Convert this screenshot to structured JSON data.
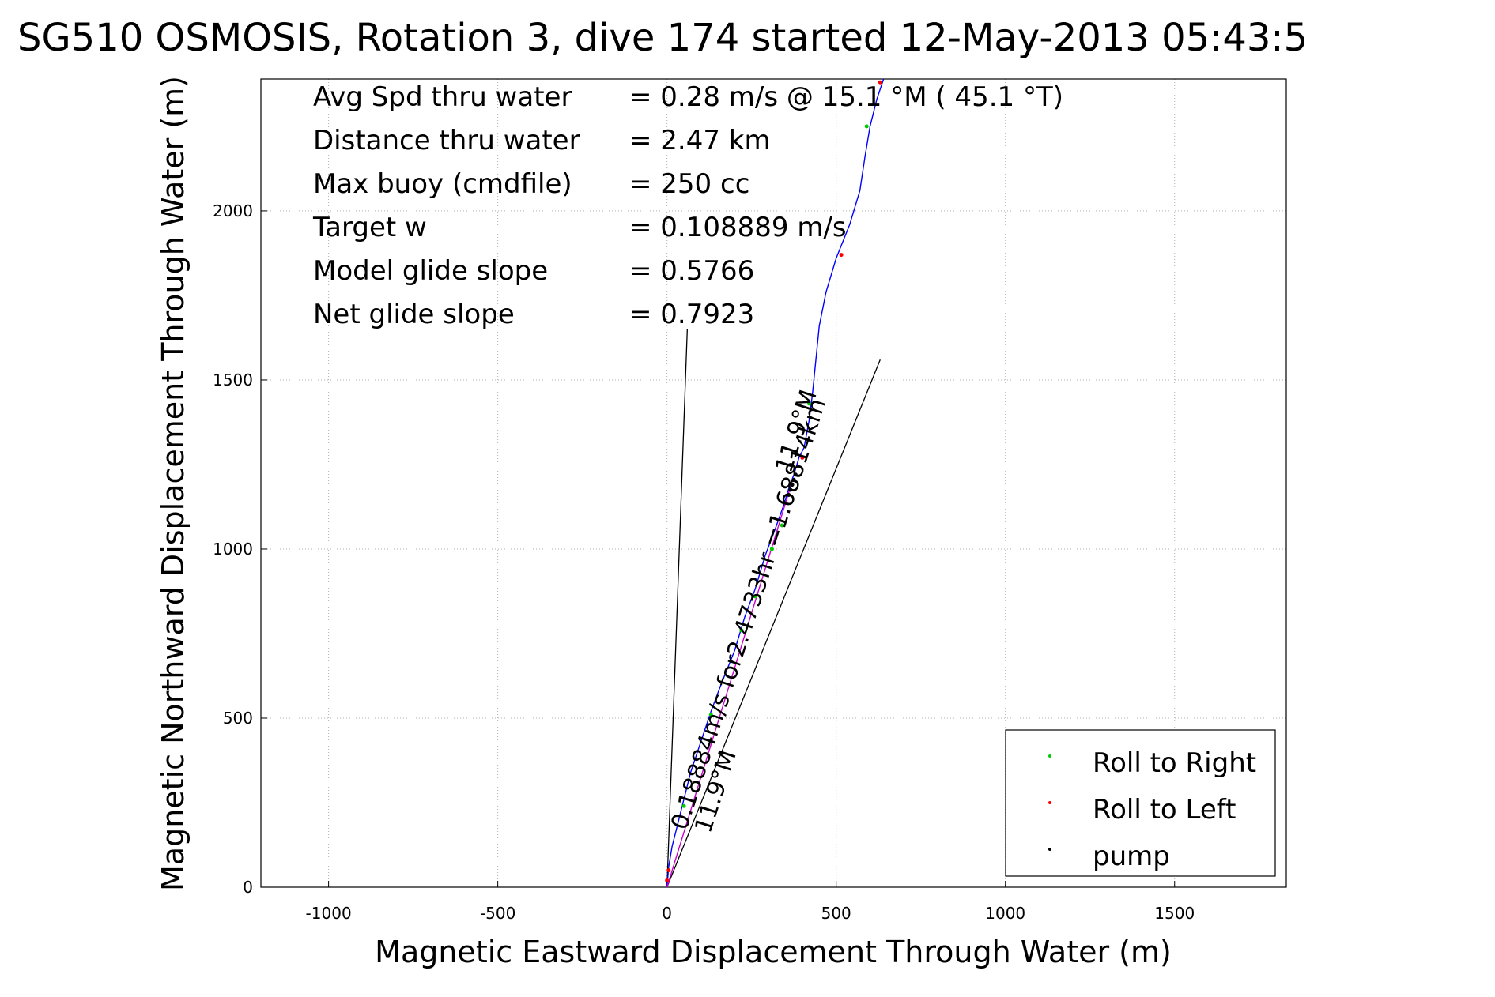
{
  "chart_data": {
    "type": "line",
    "title": "SG510 OSMOSIS, Rotation 3, dive 174 started 12-May-2013 05:43:5",
    "xlabel": "Magnetic Eastward Displacement Through Water (m)",
    "ylabel": "Magnetic Northward Displacement Through Water (m)",
    "xlim": [
      -1200,
      1830
    ],
    "ylim": [
      0,
      2390
    ],
    "xticks": [
      -1000,
      -500,
      0,
      500,
      1000,
      1500
    ],
    "yticks": [
      0,
      500,
      1000,
      1500,
      2000
    ],
    "xtick_labels": [
      "-1000",
      "-500",
      "0",
      "500",
      "1000",
      "1500"
    ],
    "ytick_labels": [
      "0",
      "500",
      "1000",
      "1500",
      "2000"
    ],
    "grid": true,
    "legend_position": "bottom-right",
    "stats": [
      {
        "label": "Avg Spd thru water",
        "value": "=  0.28 m/s @  15.1 °M ( 45.1 °T)"
      },
      {
        "label": "Distance thru water",
        "value": "=  2.47 km"
      },
      {
        "label": "Max buoy (cmdfile)",
        "value": "= 250 cc"
      },
      {
        "label": "Target w",
        "value": "= 0.108889 m/s"
      },
      {
        "label": "Model glide slope",
        "value": "= 0.5766"
      },
      {
        "label": "Net glide slope",
        "value": "= 0.7923"
      }
    ],
    "track_labels": [
      "0.18884m/s for2.4733hr =1.68814km",
      "11.9°M",
      "11.9°M"
    ],
    "series": [
      {
        "name": "track",
        "color": "#0000ff",
        "x": [
          0,
          5,
          15,
          30,
          50,
          70,
          100,
          130,
          160,
          200,
          230,
          260,
          290,
          320,
          345,
          360,
          375,
          390,
          405,
          420,
          430,
          440,
          450,
          470,
          500,
          540,
          570,
          585,
          600,
          620,
          640
        ],
        "y": [
          0,
          60,
          120,
          180,
          260,
          340,
          430,
          520,
          600,
          700,
          800,
          880,
          980,
          1060,
          1130,
          1180,
          1220,
          1270,
          1300,
          1380,
          1460,
          1560,
          1660,
          1760,
          1860,
          1960,
          2060,
          2160,
          2250,
          2330,
          2390
        ]
      },
      {
        "name": "target-track",
        "color": "#cc00cc",
        "x": [
          0,
          370
        ],
        "y": [
          0,
          1200
        ]
      }
    ],
    "guide_lines": [
      {
        "name": "heading-line-1",
        "color": "#000000",
        "x": [
          0,
          60
        ],
        "y": [
          0,
          1650
        ]
      },
      {
        "name": "heading-line-2",
        "color": "#000000",
        "x": [
          0,
          630
        ],
        "y": [
          0,
          1560
        ]
      }
    ],
    "markers": [
      {
        "name": "Roll to Right",
        "color": "#00cc00",
        "x": [
          50,
          130,
          220,
          260,
          310,
          340,
          420,
          590
        ],
        "y": [
          240,
          510,
          760,
          860,
          1000,
          1070,
          1430,
          2250
        ]
      },
      {
        "name": "Roll to Left",
        "color": "#ff0000",
        "x": [
          0,
          5,
          400,
          515,
          630
        ],
        "y": [
          20,
          50,
          1270,
          1870,
          2380
        ]
      },
      {
        "name": "pump",
        "color": "#000000",
        "x": [
          360,
          365,
          370,
          375,
          380
        ],
        "y": [
          1160,
          1175,
          1190,
          1205,
          1220
        ]
      }
    ],
    "legend": [
      "Roll to Right",
      "Roll to Left",
      "pump"
    ]
  }
}
